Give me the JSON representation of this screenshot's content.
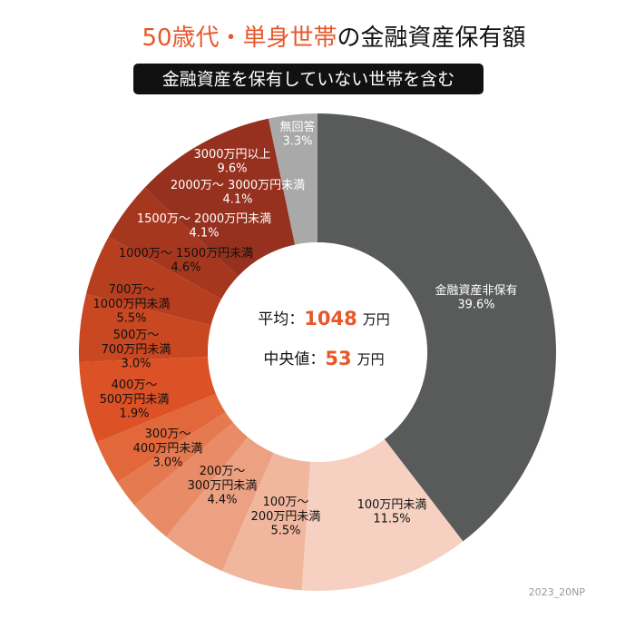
{
  "chart_data": {
    "type": "donut",
    "title": {
      "highlight": "50歳代・単身世帯",
      "rest": "の金融資産保有額"
    },
    "subtitle": "金融資産を保有していない世帯を含む",
    "categories": [
      "金融資産非保有",
      "100万円未満",
      "100万〜\n200万円未満",
      "200万〜\n300万円未満",
      "300万〜\n400万円未満",
      "400万〜\n500万円未満",
      "500万〜\n700万円未満",
      "700万〜\n1000万円未満",
      "1000万〜 1500万円未満",
      "1500万〜 2000万円未満",
      "2000万〜 3000万円未満",
      "3000万円以上",
      "無回答"
    ],
    "values": [
      39.6,
      11.5,
      5.5,
      4.4,
      3.0,
      1.9,
      3.0,
      5.5,
      4.6,
      4.1,
      4.1,
      9.6,
      3.3
    ],
    "value_labels": [
      "39.6%",
      "11.5%",
      "5.5%",
      "4.4%",
      "3.0%",
      "1.9%",
      "3.0%",
      "5.5%",
      "4.6%",
      "4.1%",
      "4.1%",
      "9.6%",
      "3.3%"
    ],
    "colors": [
      "#595b5b",
      "#f6d1c1",
      "#f1b79e",
      "#eca183",
      "#e88b66",
      "#e57a51",
      "#e2683c",
      "#dc5125",
      "#c94721",
      "#b83e20",
      "#a6371f",
      "#95311e",
      "#a9a9a9"
    ],
    "center": [
      {
        "label": "平均：",
        "value": 1048,
        "unit": "万円"
      },
      {
        "label": "中央値：",
        "value": 53,
        "unit": "万円"
      }
    ],
    "footnote": "2023_20NP"
  }
}
